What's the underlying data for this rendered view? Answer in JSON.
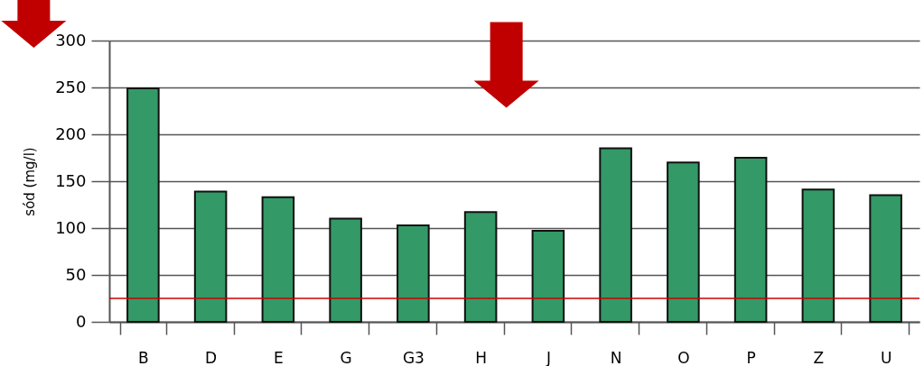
{
  "chart_data": {
    "type": "bar",
    "ylabel": "sód (mg/l)",
    "categories": [
      "B",
      "D",
      "E",
      "G",
      "G3",
      "H",
      "J",
      "N",
      "O",
      "P",
      "Z",
      "U"
    ],
    "values": [
      249,
      139,
      133,
      110,
      103,
      117,
      97,
      185,
      170,
      175,
      141,
      135
    ],
    "color": "#339966",
    "ylim": [
      0,
      300
    ],
    "yticks": [
      0,
      50,
      100,
      150,
      200,
      250,
      300
    ],
    "grid": "y",
    "ref_lines": [
      {
        "axis": "y",
        "value": 25,
        "color": "#cc0000"
      }
    ]
  }
}
